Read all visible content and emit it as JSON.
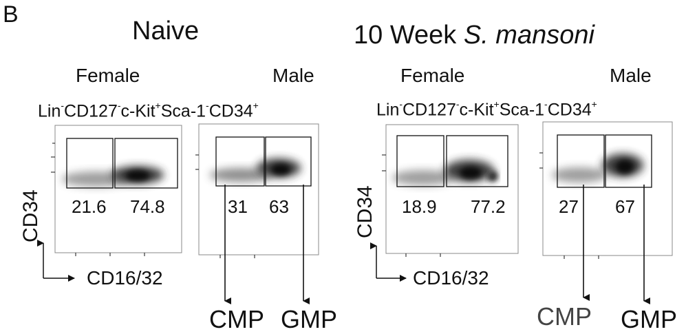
{
  "figure": {
    "panel_label": "B",
    "groups": [
      {
        "title": "Naive",
        "title_italic": "",
        "gate_description": {
          "parts": [
            {
              "text": "Lin",
              "sup": "-"
            },
            {
              "text": "CD127",
              "sup": "-"
            },
            {
              "text": "c-Kit",
              "sup": "+"
            },
            {
              "text": "Sca-1",
              "sup": "-"
            },
            {
              "text": "CD34",
              "sup": "+"
            }
          ]
        },
        "female": {
          "label": "Female",
          "gate_percentages": [
            "21.6",
            "74.8"
          ]
        },
        "male": {
          "label": "Male",
          "gate_percentages": [
            "31",
            "63"
          ]
        },
        "y_axis_label": "CD34",
        "x_axis_label": "CD16/32",
        "populations": [
          "CMP",
          "GMP"
        ]
      },
      {
        "title": "10 Week ",
        "title_italic": "S. mansoni",
        "gate_description": {
          "parts": [
            {
              "text": "Lin",
              "sup": "-"
            },
            {
              "text": "CD127",
              "sup": "-"
            },
            {
              "text": "c-Kit",
              "sup": "+"
            },
            {
              "text": "Sca-1",
              "sup": "-"
            },
            {
              "text": "CD34",
              "sup": "+"
            }
          ]
        },
        "female": {
          "label": "Female",
          "gate_percentages": [
            "18.9",
            "77.2"
          ]
        },
        "male": {
          "label": "Male",
          "gate_percentages": [
            "27",
            "67"
          ]
        },
        "y_axis_label": "CD34",
        "x_axis_label": "CD16/32",
        "populations": [
          "CMP",
          "GMP"
        ]
      }
    ],
    "colors": {
      "ink": "#111111",
      "density": "#1a1a1a",
      "population_grey": "#444444"
    }
  }
}
